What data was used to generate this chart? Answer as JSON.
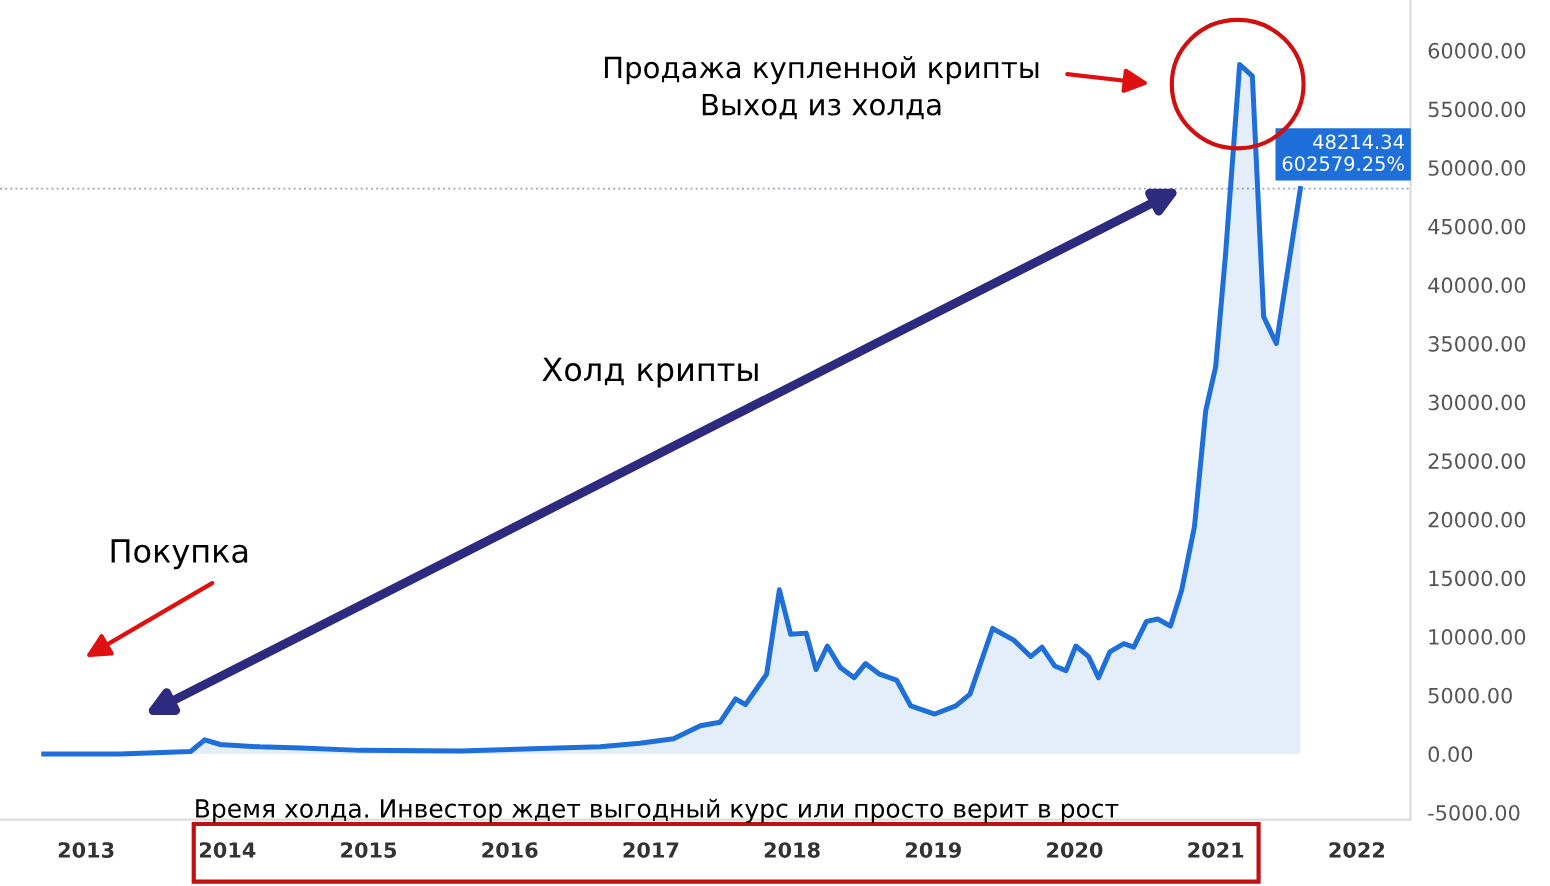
{
  "chart_data": {
    "type": "area",
    "series": [
      {
        "color": "#1e6fd9",
        "x": [
          2012.7,
          2013.24,
          2013.74,
          2013.84,
          2013.95,
          2014.23,
          2014.52,
          2014.94,
          2015.65,
          2016.22,
          2016.64,
          2016.92,
          2017.16,
          2017.35,
          2017.49,
          2017.6,
          2017.67,
          2017.82,
          2017.91,
          2017.99,
          2018.1,
          2018.17,
          2018.25,
          2018.34,
          2018.44,
          2018.52,
          2018.62,
          2018.74,
          2018.84,
          2019.01,
          2019.16,
          2019.26,
          2019.42,
          2019.57,
          2019.69,
          2019.77,
          2019.86,
          2019.94,
          2020.01,
          2020.1,
          2020.17,
          2020.25,
          2020.35,
          2020.42,
          2020.51,
          2020.59,
          2020.68,
          2020.76,
          2020.85,
          2020.93,
          2021.0,
          2021.07,
          2021.17,
          2021.26,
          2021.34,
          2021.43,
          2021.6
        ],
        "values": [
          0,
          0,
          200,
          1200,
          800,
          600,
          500,
          300,
          250,
          450,
          600,
          900,
          1300,
          2400,
          2700,
          4700,
          4200,
          6800,
          14000,
          10200,
          10300,
          7200,
          9200,
          7400,
          6500,
          7700,
          6800,
          6300,
          4100,
          3400,
          4100,
          5100,
          10700,
          9700,
          8300,
          9100,
          7500,
          7100,
          9200,
          8300,
          6500,
          8700,
          9400,
          9100,
          11300,
          11500,
          10900,
          14000,
          19400,
          29300,
          33000,
          42600,
          58800,
          57800,
          37300,
          35000,
          48214.34
        ]
      }
    ],
    "xlim": [
      2012.39,
      2022.38
    ],
    "xticks": [
      2013,
      2014,
      2015,
      2016,
      2017,
      2018,
      2019,
      2020,
      2021,
      2022
    ],
    "ylim": [
      -5600,
      64300
    ],
    "yticks": [
      {
        "value": -5000,
        "label": "-5000.00"
      },
      {
        "value": 0,
        "label": "0.00"
      },
      {
        "value": 5000,
        "label": "5000.00"
      },
      {
        "value": 10000,
        "label": "10000.00"
      },
      {
        "value": 15000,
        "label": "15000.00"
      },
      {
        "value": 20000,
        "label": "20000.00"
      },
      {
        "value": 25000,
        "label": "25000.00"
      },
      {
        "value": 30000,
        "label": "30000.00"
      },
      {
        "value": 35000,
        "label": "35000.00"
      },
      {
        "value": 40000,
        "label": "40000.00"
      },
      {
        "value": 45000,
        "label": "45000.00"
      },
      {
        "value": 50000,
        "label": "50000.00"
      },
      {
        "value": 55000,
        "label": "55000.00"
      },
      {
        "value": 60000,
        "label": "60000.00"
      }
    ],
    "ref_lines": [
      {
        "axis": "y",
        "value": 48214.34,
        "label": "48214.34\n602579.25%",
        "color": "#9aa5b5",
        "line_style": "dotted"
      }
    ],
    "annotations": [
      "Продажа купленной крипты\nВыход из холда",
      "Холд крипты",
      "Покупка",
      "Время холда. Инвестор ждет выгодный курс или просто верит в рост"
    ],
    "grid": false,
    "legend": false,
    "marker": "none",
    "line_style": "solid"
  }
}
